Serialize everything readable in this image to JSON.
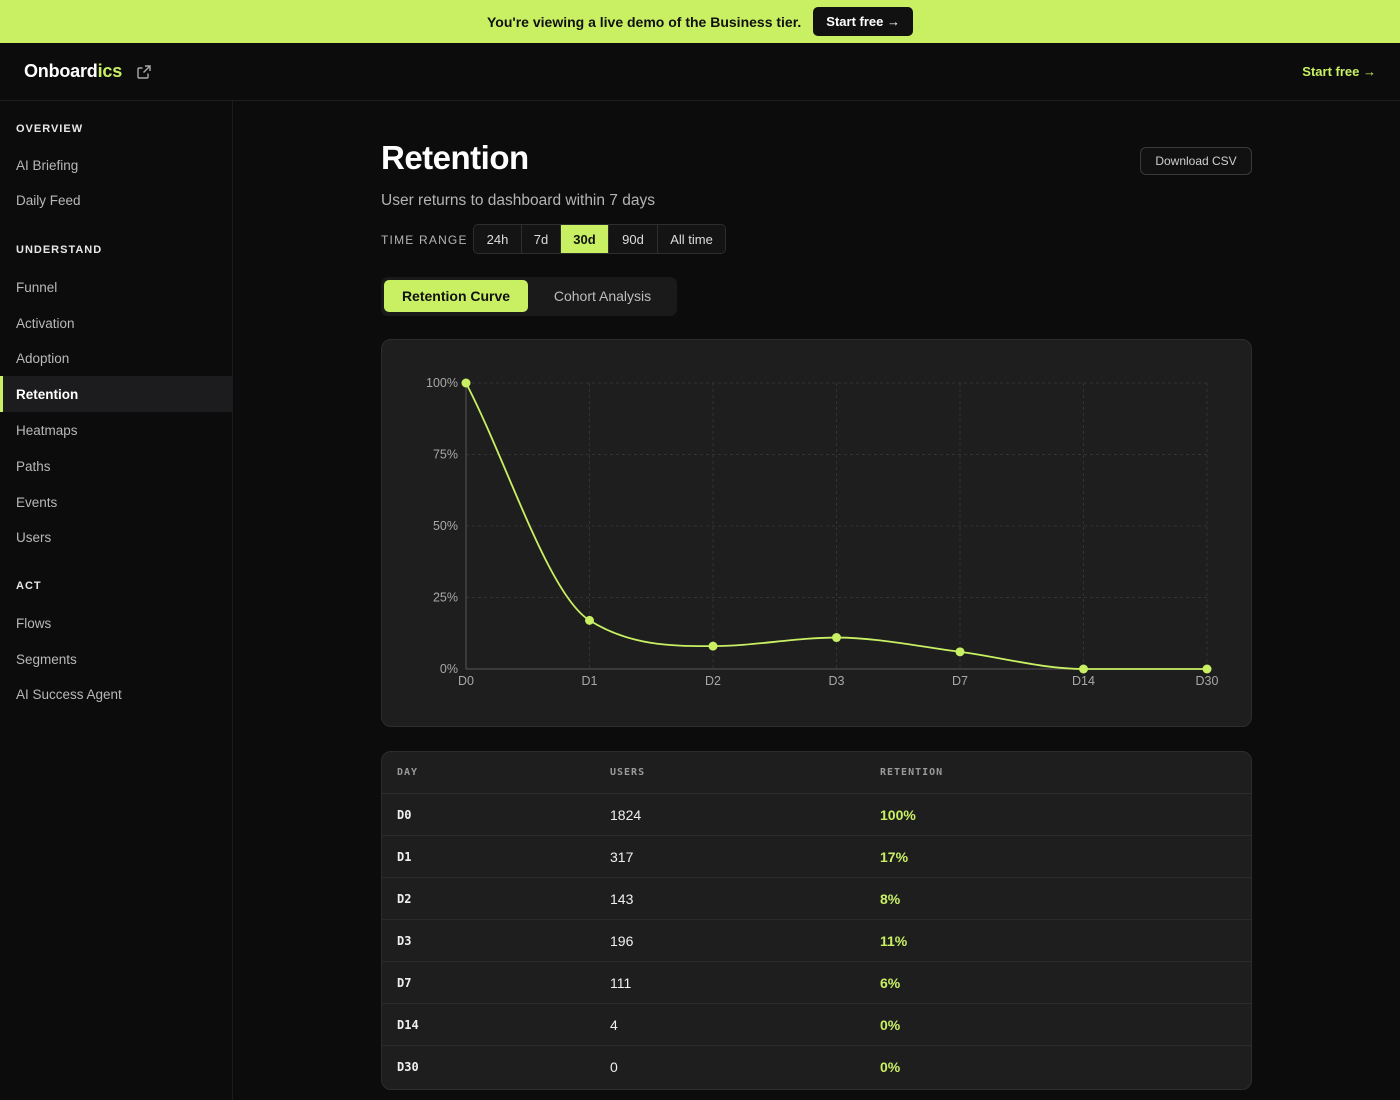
{
  "banner": {
    "text": "You're viewing a live demo of the Business tier.",
    "cta": "Start free →"
  },
  "topbar": {
    "logo_main": "Onboard",
    "logo_accent": "ics",
    "cta": "Start free →"
  },
  "sidebar": {
    "sections": [
      {
        "title": "OVERVIEW",
        "items": [
          "AI Briefing",
          "Daily Feed"
        ]
      },
      {
        "title": "UNDERSTAND",
        "items": [
          "Funnel",
          "Activation",
          "Adoption",
          "Retention",
          "Heatmaps",
          "Paths",
          "Events",
          "Users"
        ]
      },
      {
        "title": "ACT",
        "items": [
          "Flows",
          "Segments",
          "AI Success Agent"
        ]
      }
    ],
    "active": "Retention"
  },
  "page": {
    "title": "Retention",
    "subtitle": "User returns to dashboard within 7 days",
    "download": "Download CSV",
    "time_range_label": "TIME RANGE",
    "time_ranges": [
      "24h",
      "7d",
      "30d",
      "90d",
      "All time"
    ],
    "time_range_active": "30d",
    "tabs": [
      "Retention Curve",
      "Cohort Analysis"
    ],
    "tab_active": "Retention Curve"
  },
  "chart_data": {
    "type": "line",
    "categories": [
      "D0",
      "D1",
      "D2",
      "D3",
      "D7",
      "D14",
      "D30"
    ],
    "values": [
      100,
      17,
      8,
      11,
      6,
      0,
      0
    ],
    "y_ticks": [
      "0%",
      "25%",
      "50%",
      "75%",
      "100%"
    ],
    "ylim": [
      0,
      100
    ],
    "grid": true,
    "line_color": "#c9f063"
  },
  "table": {
    "headers": [
      "DAY",
      "USERS",
      "RETENTION"
    ],
    "rows": [
      {
        "day": "D0",
        "users": "1824",
        "retention": "100%"
      },
      {
        "day": "D1",
        "users": "317",
        "retention": "17%"
      },
      {
        "day": "D2",
        "users": "143",
        "retention": "8%"
      },
      {
        "day": "D3",
        "users": "196",
        "retention": "11%"
      },
      {
        "day": "D7",
        "users": "111",
        "retention": "6%"
      },
      {
        "day": "D14",
        "users": "4",
        "retention": "0%"
      },
      {
        "day": "D30",
        "users": "0",
        "retention": "0%"
      }
    ]
  },
  "colors": {
    "accent": "#c9f063",
    "background": "#0c0c0c",
    "card": "#1e1e1e"
  }
}
